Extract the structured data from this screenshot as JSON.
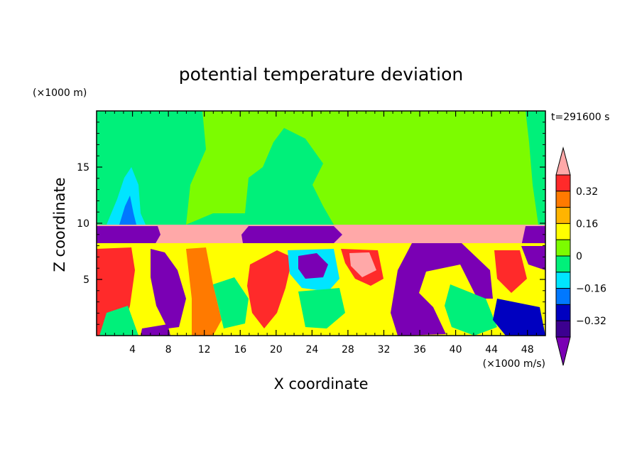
{
  "chart_data": {
    "type": "heatmap",
    "title": "potential temperature deviation",
    "xlabel": "X coordinate",
    "ylabel": "Z coordinate",
    "x_unit": "(×1000 m/s)",
    "y_unit": "(×1000 m)",
    "time_label": "t=291600 s",
    "xlim": [
      0,
      50
    ],
    "ylim": [
      0,
      20
    ],
    "x_ticks": [
      4,
      8,
      12,
      16,
      20,
      24,
      28,
      32,
      36,
      40,
      44,
      48
    ],
    "y_ticks": [
      5,
      10,
      15
    ],
    "colorbar": {
      "tick_labels": [
        "0.32",
        "0.16",
        "0",
        "−0.16",
        "−0.32"
      ],
      "levels": [
        {
          "value": 0.36,
          "color": "#ffa8a8"
        },
        {
          "value": 0.32,
          "color": "#ff2a2a"
        },
        {
          "value": 0.24,
          "color": "#ff7a00"
        },
        {
          "value": 0.16,
          "color": "#ffb400"
        },
        {
          "value": 0.08,
          "color": "#ffff00"
        },
        {
          "value": 0.04,
          "color": "#7cfc00"
        },
        {
          "value": 0.0,
          "color": "#00f07a"
        },
        {
          "value": -0.08,
          "color": "#00e5ff"
        },
        {
          "value": -0.16,
          "color": "#0078ff"
        },
        {
          "value": -0.24,
          "color": "#0000c0"
        },
        {
          "value": -0.32,
          "color": "#3c0090"
        },
        {
          "value": -0.36,
          "color": "#7a00b4"
        }
      ]
    },
    "grid": false,
    "legend_position": "right"
  }
}
